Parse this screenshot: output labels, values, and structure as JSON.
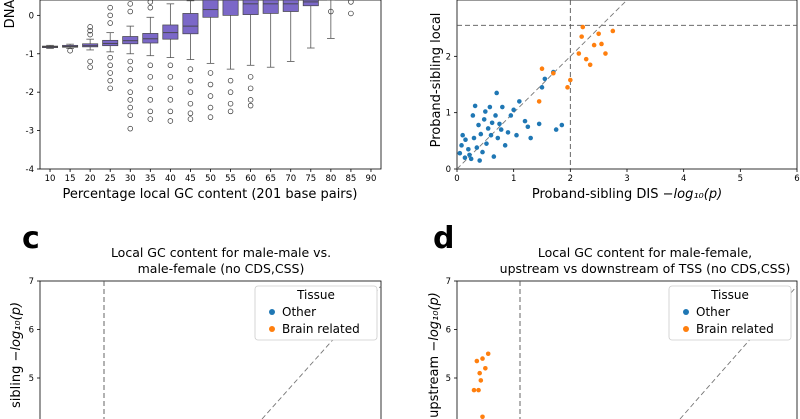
{
  "chart_data": [
    {
      "type": "box",
      "panel": "a",
      "xlabel": "Percentage local GC content (201 base pairs)",
      "ylabel": "DNA",
      "categories": [
        "10",
        "15",
        "20",
        "25",
        "30",
        "35",
        "40",
        "45",
        "50",
        "55",
        "60",
        "65",
        "70",
        "75",
        "80",
        "85",
        "90"
      ],
      "ylim": [
        -4,
        0.4
      ],
      "yticks": [
        0,
        -1,
        -2,
        -3,
        -4
      ],
      "box_color": "#7b68c8",
      "boxes": [
        {
          "q1": -0.84,
          "median": -0.82,
          "q3": -0.8,
          "whislo": -0.86,
          "whishi": -0.78,
          "fliers": []
        },
        {
          "q1": -0.83,
          "median": -0.81,
          "q3": -0.78,
          "whislo": -0.86,
          "whishi": -0.75,
          "fliers": [
            -0.92
          ]
        },
        {
          "q1": -0.82,
          "median": -0.79,
          "q3": -0.74,
          "whislo": -0.9,
          "whishi": -0.62,
          "fliers": [
            -1.2,
            -1.35,
            -0.3,
            -0.4,
            -0.5
          ]
        },
        {
          "q1": -0.79,
          "median": -0.73,
          "q3": -0.65,
          "whislo": -0.95,
          "whishi": -0.45,
          "fliers": [
            -1.1,
            -1.3,
            -1.5,
            -1.7,
            -1.9,
            -0.2,
            0.0,
            0.2
          ]
        },
        {
          "q1": -0.74,
          "median": -0.66,
          "q3": -0.55,
          "whislo": -1.0,
          "whishi": -0.28,
          "fliers": [
            -1.2,
            -1.4,
            -1.7,
            -2.0,
            -2.2,
            -2.4,
            -2.6,
            -2.95,
            0.1,
            0.3
          ]
        },
        {
          "q1": -0.72,
          "median": -0.61,
          "q3": -0.47,
          "whislo": -1.05,
          "whishi": -0.05,
          "fliers": [
            -1.3,
            -1.6,
            -1.9,
            -2.2,
            -2.5,
            -2.7,
            0.2,
            0.35
          ]
        },
        {
          "q1": -0.62,
          "median": -0.45,
          "q3": -0.25,
          "whislo": -1.1,
          "whishi": 0.3,
          "fliers": [
            -1.3,
            -1.6,
            -1.9,
            -2.2,
            -2.5,
            -2.75
          ]
        },
        {
          "q1": -0.48,
          "median": -0.28,
          "q3": 0.05,
          "whislo": -1.15,
          "whishi": 0.38,
          "fliers": [
            -1.4,
            -1.7,
            -2.0,
            -2.3,
            -2.55,
            -2.7
          ]
        },
        {
          "q1": -0.05,
          "median": 0.15,
          "q3": 0.4,
          "whislo": -1.25,
          "whishi": 0.42,
          "fliers": [
            -1.5,
            -1.8,
            -2.1,
            -2.4,
            -2.65
          ]
        },
        {
          "q1": 0.0,
          "median": 0.4,
          "q3": 0.4,
          "whislo": -1.4,
          "whishi": 0.42,
          "fliers": [
            -1.7,
            -2.0,
            -2.3,
            -2.5
          ]
        },
        {
          "q1": 0.02,
          "median": 0.3,
          "q3": 0.4,
          "whislo": -1.3,
          "whishi": 0.42,
          "fliers": [
            -1.6,
            -1.9,
            -2.2,
            -2.35
          ]
        },
        {
          "q1": 0.05,
          "median": 0.3,
          "q3": 0.4,
          "whislo": -1.35,
          "whishi": 0.42,
          "fliers": []
        },
        {
          "q1": 0.1,
          "median": 0.3,
          "q3": 0.4,
          "whislo": -1.2,
          "whishi": 0.42,
          "fliers": []
        },
        {
          "q1": 0.25,
          "median": 0.35,
          "q3": 0.4,
          "whislo": -0.85,
          "whishi": 0.42,
          "fliers": []
        },
        {
          "q1": null,
          "median": null,
          "q3": null,
          "whislo": -0.6,
          "whishi": 0.4,
          "fliers": [
            0.1
          ]
        },
        {
          "q1": null,
          "median": null,
          "q3": null,
          "whislo": null,
          "whishi": null,
          "fliers": [
            0.35,
            0.05
          ]
        },
        {
          "q1": null,
          "median": null,
          "q3": null,
          "whislo": null,
          "whishi": null,
          "fliers": []
        }
      ]
    },
    {
      "type": "scatter",
      "panel": "b",
      "xlabel_main": "Proband-sibling DIS ",
      "xlabel_math": "−log₁₀(p)",
      "ylabel": "Proband-sibling local",
      "xlim": [
        0,
        6
      ],
      "ylim": [
        0,
        3
      ],
      "xticks": [
        0,
        1,
        2,
        3,
        4,
        5,
        6
      ],
      "yticks": [
        0,
        1,
        2
      ],
      "thresholds": {
        "x": 2.0,
        "y": 2.55
      },
      "series": [
        {
          "color": "#1f77b4",
          "points": [
            [
              0.05,
              0.28
            ],
            [
              0.08,
              0.42
            ],
            [
              0.1,
              0.6
            ],
            [
              0.14,
              0.2
            ],
            [
              0.15,
              0.52
            ],
            [
              0.2,
              0.35
            ],
            [
              0.22,
              0.25
            ],
            [
              0.25,
              0.18
            ],
            [
              0.28,
              0.95
            ],
            [
              0.3,
              0.55
            ],
            [
              0.32,
              1.12
            ],
            [
              0.35,
              0.38
            ],
            [
              0.38,
              0.78
            ],
            [
              0.4,
              0.15
            ],
            [
              0.42,
              0.62
            ],
            [
              0.45,
              0.3
            ],
            [
              0.48,
              0.88
            ],
            [
              0.5,
              1.02
            ],
            [
              0.52,
              0.45
            ],
            [
              0.55,
              0.72
            ],
            [
              0.58,
              1.1
            ],
            [
              0.6,
              0.6
            ],
            [
              0.62,
              0.82
            ],
            [
              0.65,
              0.22
            ],
            [
              0.68,
              0.95
            ],
            [
              0.7,
              1.35
            ],
            [
              0.72,
              0.55
            ],
            [
              0.75,
              0.8
            ],
            [
              0.78,
              0.7
            ],
            [
              0.8,
              1.1
            ],
            [
              0.85,
              0.42
            ],
            [
              0.9,
              0.65
            ],
            [
              0.95,
              0.95
            ],
            [
              1.0,
              1.05
            ],
            [
              1.05,
              0.6
            ],
            [
              1.1,
              1.2
            ],
            [
              1.2,
              0.85
            ],
            [
              1.25,
              0.75
            ],
            [
              1.3,
              0.55
            ],
            [
              1.45,
              0.8
            ],
            [
              1.5,
              1.45
            ],
            [
              1.55,
              1.6
            ],
            [
              1.7,
              1.72
            ],
            [
              1.75,
              0.7
            ],
            [
              1.85,
              0.78
            ]
          ]
        },
        {
          "color": "#ff7f0e",
          "points": [
            [
              1.45,
              1.2
            ],
            [
              1.5,
              1.78
            ],
            [
              1.7,
              1.7
            ],
            [
              1.95,
              1.45
            ],
            [
              2.0,
              1.58
            ],
            [
              2.15,
              2.05
            ],
            [
              2.2,
              2.35
            ],
            [
              2.22,
              2.52
            ],
            [
              2.28,
              1.95
            ],
            [
              2.35,
              1.85
            ],
            [
              2.42,
              2.2
            ],
            [
              2.5,
              2.4
            ],
            [
              2.55,
              2.22
            ],
            [
              2.62,
              2.05
            ],
            [
              2.75,
              2.45
            ]
          ]
        }
      ]
    },
    {
      "type": "scatter",
      "panel": "c",
      "title": [
        "Local GC content for male-male vs.",
        "male-female (no CDS,CSS)"
      ],
      "ylabel_main": "sibling ",
      "ylabel_math": "−log₁₀(p)",
      "ylim_visible": [
        4,
        7
      ],
      "yticks": [
        7,
        6,
        5
      ],
      "threshold_x_note": "dashed vertical line",
      "legend": {
        "title": "Tissue",
        "entries": [
          {
            "label": "Other",
            "color": "#1f77b4"
          },
          {
            "label": "Brain related",
            "color": "#ff7f0e"
          }
        ],
        "position": "top-right"
      },
      "series": []
    },
    {
      "type": "scatter",
      "panel": "d",
      "title": [
        "Local GC content for male-female,",
        "upstream vs downstream of TSS (no CDS,CSS)"
      ],
      "ylabel_main": "upstream ",
      "ylabel_math": "−log₁₀(p)",
      "ylim_visible": [
        4,
        7
      ],
      "yticks": [
        7,
        6,
        5
      ],
      "legend": {
        "title": "Tissue",
        "entries": [
          {
            "label": "Other",
            "color": "#1f77b4"
          },
          {
            "label": "Brain related",
            "color": "#ff7f0e"
          }
        ],
        "position": "top-right"
      },
      "series": [
        {
          "color": "#ff7f0e",
          "points": [
            [
              0.55,
              5.5
            ],
            [
              0.45,
              5.4
            ],
            [
              0.35,
              5.35
            ],
            [
              0.5,
              5.2
            ],
            [
              0.4,
              5.1
            ],
            [
              0.3,
              4.75
            ],
            [
              0.38,
              4.75
            ],
            [
              0.42,
              4.95
            ],
            [
              0.45,
              4.2
            ]
          ]
        }
      ]
    }
  ],
  "panel_labels": {
    "c": "c",
    "d": "d"
  }
}
